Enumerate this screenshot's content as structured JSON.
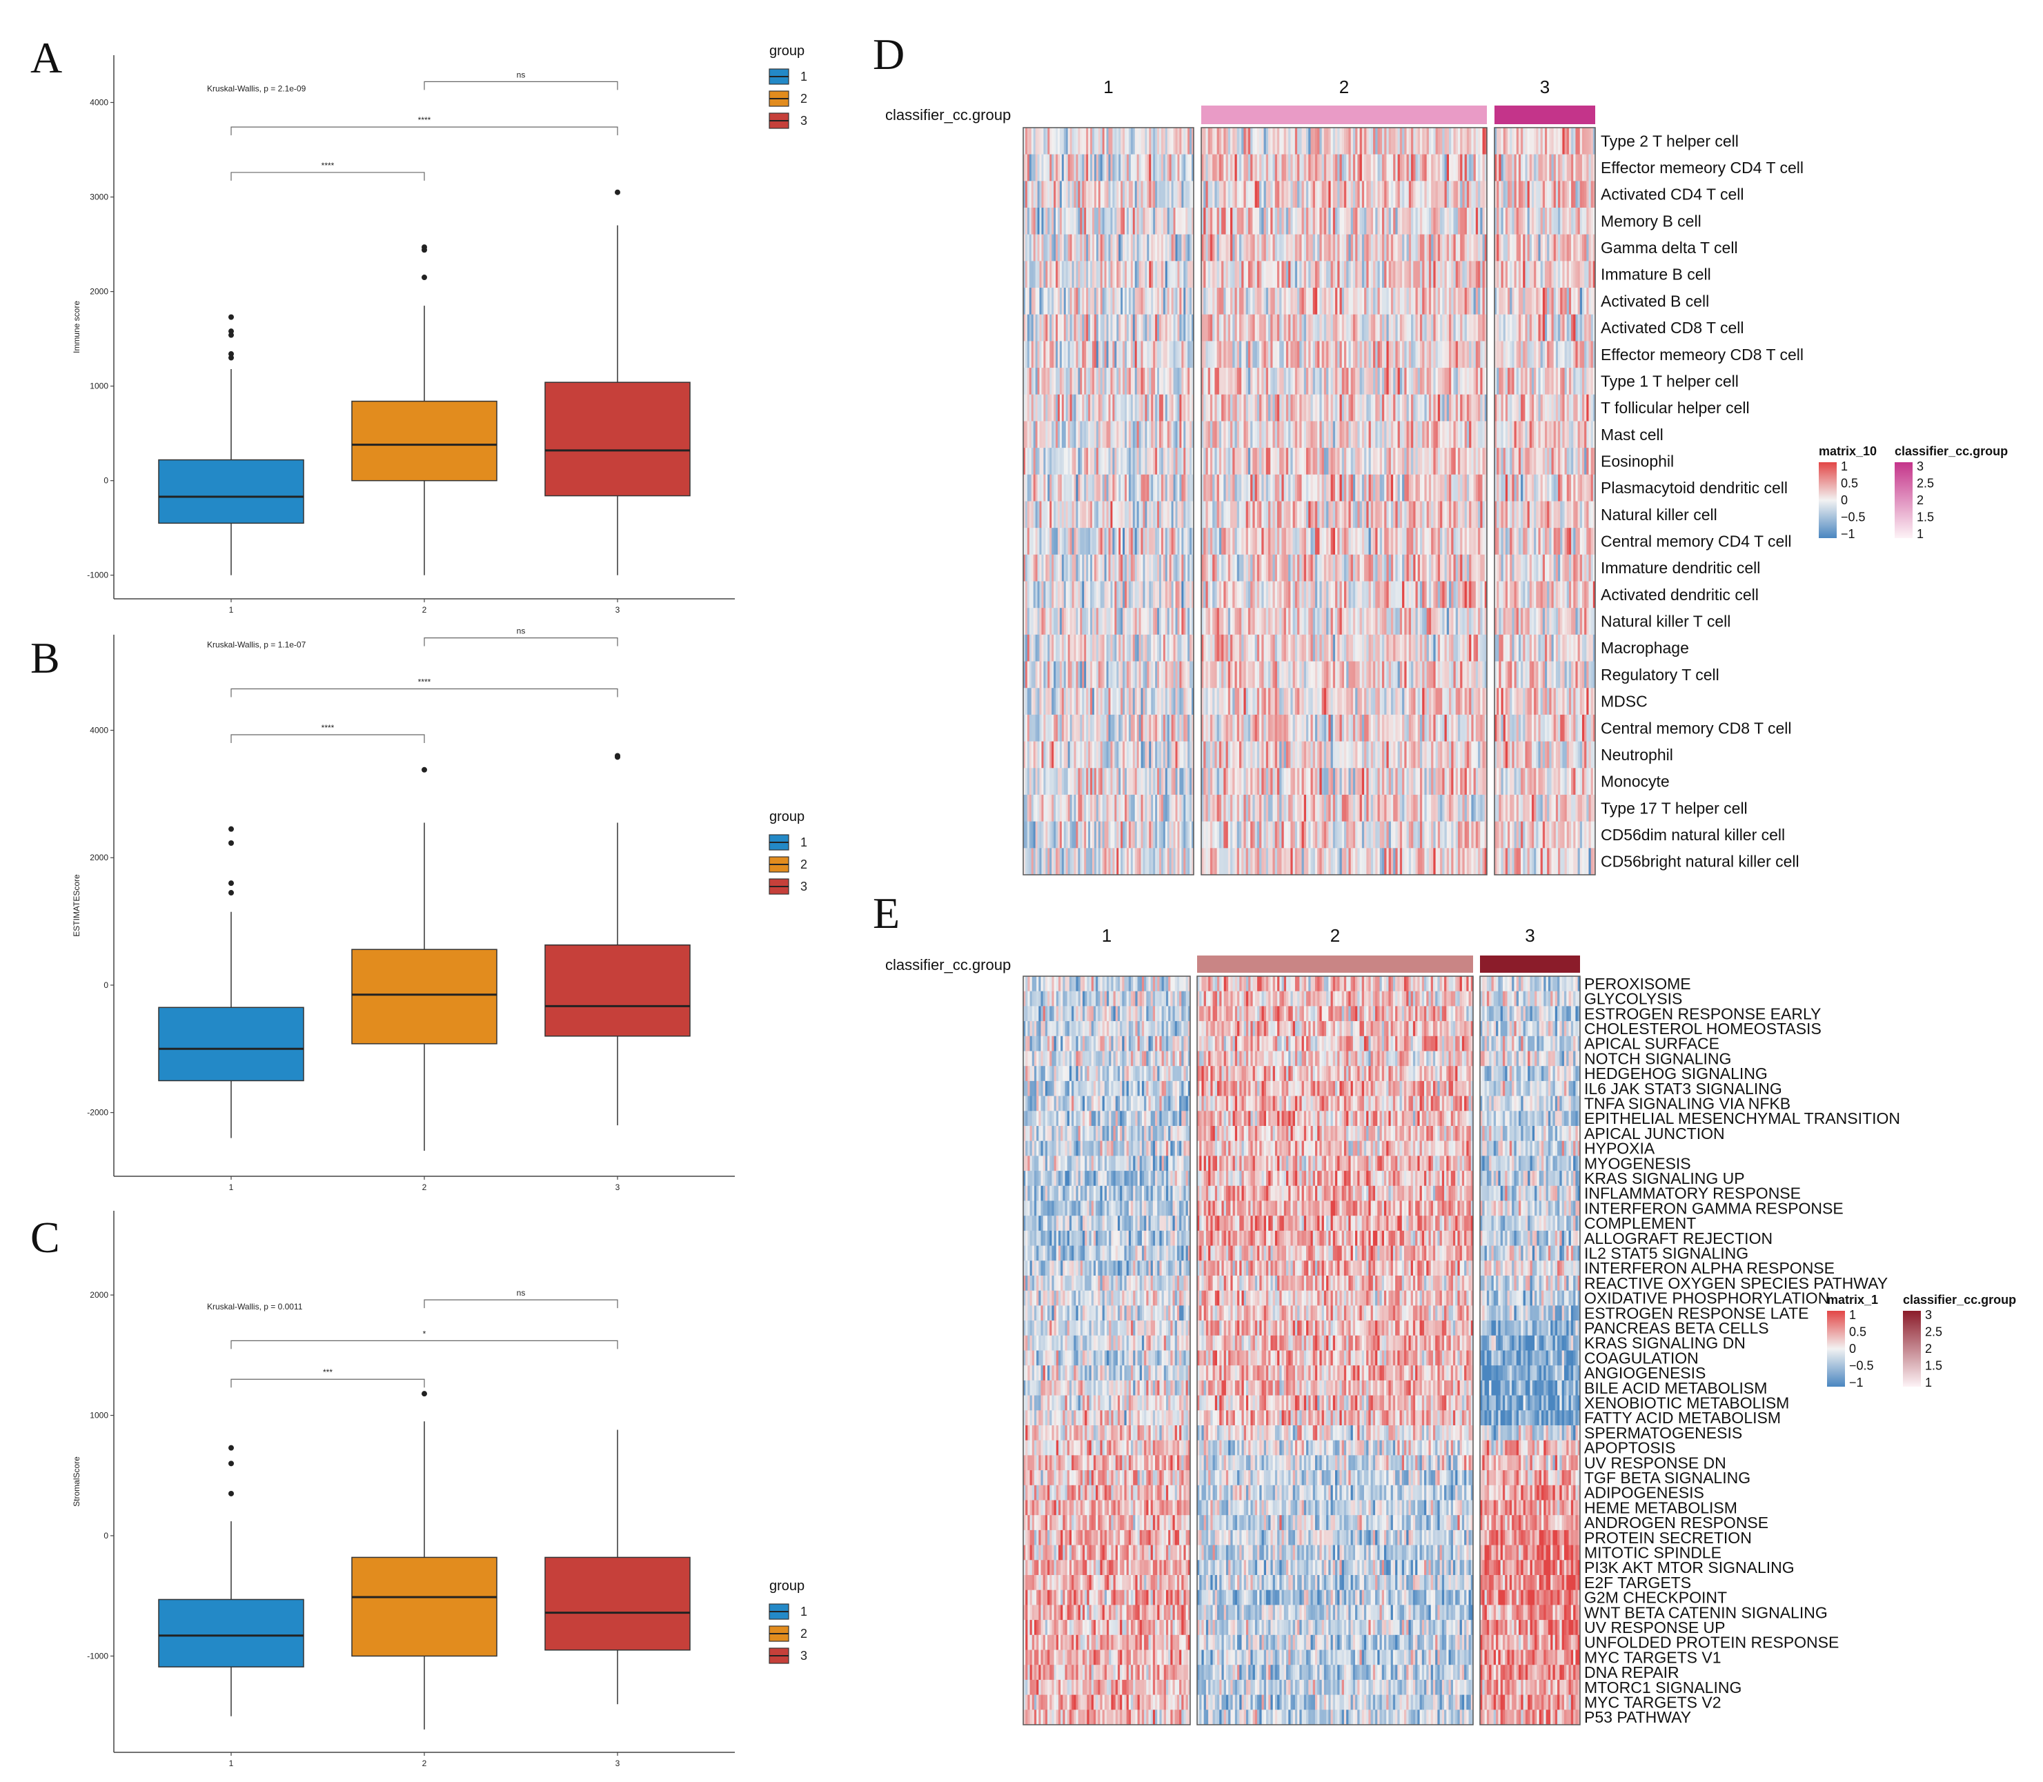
{
  "panels": {
    "A": "A",
    "B": "B",
    "C": "C",
    "D": "D",
    "E": "E"
  },
  "colors": {
    "group1": "#2389c7",
    "group2": "#e28c1e",
    "group3": "#c6403a",
    "heat_low": "#4a86c0",
    "heat_mid": "#f2f2f2",
    "heat_high": "#e24646",
    "ann_d2": "#e99bc6",
    "ann_d3": "#c4348a",
    "ann_e2": "#c98585",
    "ann_e3": "#8b1c2a"
  },
  "chart_data": [
    {
      "id": "A",
      "type": "box",
      "ylabel": "Immune score",
      "categories": [
        "1",
        "2",
        "3"
      ],
      "yticks": [
        -1000,
        0,
        1000,
        2000,
        3000,
        4000
      ],
      "ytick_labels": [
        "-1000",
        "0",
        "1000",
        "2000",
        "3000",
        "4000"
      ],
      "ylim": [
        -1250,
        4500
      ],
      "kruskal": "Kruskal-Wallis, p = 2.1e-09",
      "boxes": [
        {
          "group": "1",
          "min": -1000,
          "q1": -450,
          "median": -170,
          "q3": 220,
          "max": 1180,
          "outliers": [
            1300,
            1340,
            1540,
            1580,
            1730
          ]
        },
        {
          "group": "2",
          "min": -1000,
          "q1": 0,
          "median": 380,
          "q3": 840,
          "max": 1850,
          "outliers": [
            2150,
            2440,
            2470
          ]
        },
        {
          "group": "3",
          "min": -1000,
          "q1": -160,
          "median": 320,
          "q3": 1040,
          "max": 2700,
          "outliers": [
            3050
          ]
        }
      ],
      "comparisons": [
        {
          "from": "2",
          "to": "3",
          "label": "ns",
          "y": 4220
        },
        {
          "from": "1",
          "to": "3",
          "label": "****",
          "y": 3740
        },
        {
          "from": "1",
          "to": "2",
          "label": "****",
          "y": 3260
        }
      ],
      "legend": {
        "title": "group",
        "items": [
          "1",
          "2",
          "3"
        ]
      }
    },
    {
      "id": "B",
      "type": "box",
      "ylabel": "ESTIMATEScore",
      "categories": [
        "1",
        "2",
        "3"
      ],
      "yticks": [
        -2000,
        0,
        2000,
        4000
      ],
      "ytick_labels": [
        "-2000",
        "0",
        "2000",
        "4000"
      ],
      "ylim": [
        -3000,
        5500
      ],
      "kruskal": "Kruskal-Wallis, p = 1.1e-07",
      "boxes": [
        {
          "group": "1",
          "min": -2400,
          "q1": -1500,
          "median": -1000,
          "q3": -350,
          "max": 1150,
          "outliers": [
            1450,
            1600,
            2230,
            2450
          ]
        },
        {
          "group": "2",
          "min": -2600,
          "q1": -920,
          "median": -150,
          "q3": 560,
          "max": 2550,
          "outliers": [
            3380
          ]
        },
        {
          "group": "3",
          "min": -2200,
          "q1": -800,
          "median": -330,
          "q3": 630,
          "max": 2550,
          "outliers": [
            3600,
            3580
          ]
        }
      ],
      "comparisons": [
        {
          "from": "2",
          "to": "3",
          "label": "ns",
          "y": 5450
        },
        {
          "from": "1",
          "to": "3",
          "label": "****",
          "y": 4650
        },
        {
          "from": "1",
          "to": "2",
          "label": "****",
          "y": 3930
        }
      ],
      "legend": {
        "title": "group",
        "items": [
          "1",
          "2",
          "3"
        ]
      }
    },
    {
      "id": "C",
      "type": "box",
      "ylabel": "StromalScore",
      "categories": [
        "1",
        "2",
        "3"
      ],
      "yticks": [
        -1000,
        0,
        1000,
        2000
      ],
      "ytick_labels": [
        "-1000",
        "0",
        "1000",
        "2000"
      ],
      "ylim": [
        -1800,
        2700
      ],
      "kruskal": "Kruskal-Wallis, p = 0.0011",
      "boxes": [
        {
          "group": "1",
          "min": -1500,
          "q1": -1090,
          "median": -830,
          "q3": -530,
          "max": 120,
          "outliers": [
            350,
            600,
            730
          ]
        },
        {
          "group": "2",
          "min": -1610,
          "q1": -1000,
          "median": -510,
          "q3": -180,
          "max": 950,
          "outliers": [
            1180
          ]
        },
        {
          "group": "3",
          "min": -1400,
          "q1": -950,
          "median": -640,
          "q3": -180,
          "max": 880,
          "outliers": []
        }
      ],
      "comparisons": [
        {
          "from": "2",
          "to": "3",
          "label": "ns",
          "y": 1960
        },
        {
          "from": "1",
          "to": "3",
          "label": "*",
          "y": 1620
        },
        {
          "from": "1",
          "to": "2",
          "label": "***",
          "y": 1300
        }
      ],
      "legend": {
        "title": "group",
        "items": [
          "1",
          "2",
          "3"
        ]
      }
    },
    {
      "id": "D",
      "type": "heatmap",
      "annotation_label": "classifier_cc.group",
      "column_groups": [
        "1",
        "2",
        "3"
      ],
      "column_counts": [
        84,
        128,
        46
      ],
      "group_pattern": [
        [
          -0.15,
          -0.05,
          0.1,
          0.05,
          -0.1
        ],
        [
          0.1,
          0.2,
          0.15,
          0.05,
          0.2
        ],
        [
          0.0,
          0.1,
          0.25,
          0.2,
          0.1
        ]
      ],
      "rows": [
        "Type 2 T helper cell",
        "Effector memeory CD4 T cell",
        "Activated CD4 T cell",
        "Memory B cell",
        "Gamma delta T cell",
        "Immature  B cell",
        "Activated B cell",
        "Activated CD8 T cell",
        "Effector memeory CD8 T cell",
        "Type 1 T helper cell",
        "T follicular helper cell",
        "Mast cell",
        "Eosinophil",
        "Plasmacytoid dendritic cell",
        "Natural killer cell",
        "Central memory CD4 T cell",
        "Immature dendritic cell",
        "Activated dendritic cell",
        "Natural killer T cell",
        "Macrophage",
        "Regulatory T cell",
        "MDSC",
        "Central memory CD8 T cell",
        "Neutrophil",
        "Monocyte",
        "Type 17 T helper cell",
        "CD56dim natural killer cell",
        "CD56bright natural killer cell"
      ],
      "value_legend": {
        "title": "matrix_10",
        "ticks": [
          "1",
          "0.5",
          "0",
          "−0.5",
          "−1"
        ]
      },
      "group_legend": {
        "title": "classifier_cc.group",
        "ticks": [
          "3",
          "2.5",
          "2",
          "1.5",
          "1"
        ]
      }
    },
    {
      "id": "E",
      "type": "heatmap",
      "annotation_label": "classifier_cc.group",
      "column_groups": [
        "1",
        "2",
        "3"
      ],
      "column_counts": [
        76,
        124,
        44
      ],
      "rows": [
        "PEROXISOME",
        "GLYCOLYSIS",
        "ESTROGEN RESPONSE EARLY",
        "CHOLESTEROL HOMEOSTASIS",
        "APICAL SURFACE",
        "NOTCH SIGNALING",
        "HEDGEHOG SIGNALING",
        "IL6 JAK STAT3 SIGNALING",
        "TNFA SIGNALING VIA NFKB",
        "EPITHELIAL MESENCHYMAL TRANSITION",
        "APICAL JUNCTION",
        "HYPOXIA",
        "MYOGENESIS",
        "KRAS SIGNALING UP",
        "INFLAMMATORY RESPONSE",
        "INTERFERON GAMMA RESPONSE",
        "COMPLEMENT",
        "ALLOGRAFT REJECTION",
        "IL2 STAT5 SIGNALING",
        "INTERFERON ALPHA RESPONSE",
        "REACTIVE OXYGEN SPECIES PATHWAY",
        "OXIDATIVE PHOSPHORYLATION",
        "ESTROGEN RESPONSE LATE",
        "PANCREAS BETA CELLS",
        "KRAS SIGNALING DN",
        "COAGULATION",
        "ANGIOGENESIS",
        "BILE ACID METABOLISM",
        "XENOBIOTIC METABOLISM",
        "FATTY ACID METABOLISM",
        "SPERMATOGENESIS",
        "APOPTOSIS",
        "UV RESPONSE DN",
        "TGF BETA SIGNALING",
        "ADIPOGENESIS",
        "HEME METABOLISM",
        "ANDROGEN RESPONSE",
        "PROTEIN SECRETION",
        "MITOTIC SPINDLE",
        "PI3K AKT MTOR SIGNALING",
        "E2F TARGETS",
        "G2M CHECKPOINT",
        "WNT BETA CATENIN SIGNALING",
        "UV RESPONSE UP",
        "UNFOLDED PROTEIN RESPONSE",
        "MYC TARGETS V1",
        "DNA REPAIR",
        "MTORC1 SIGNALING",
        "MYC TARGETS V2",
        "P53 PATHWAY"
      ],
      "group_means": [
        [
          -0.15,
          0.25,
          -0.2
        ],
        [
          -0.2,
          0.2,
          0.0
        ],
        [
          -0.2,
          0.3,
          -0.3
        ],
        [
          -0.2,
          0.25,
          -0.2
        ],
        [
          -0.15,
          0.25,
          -0.2
        ],
        [
          -0.1,
          0.2,
          -0.1
        ],
        [
          -0.25,
          0.3,
          -0.2
        ],
        [
          -0.3,
          0.35,
          -0.2
        ],
        [
          -0.25,
          0.3,
          -0.2
        ],
        [
          -0.3,
          0.35,
          -0.3
        ],
        [
          -0.2,
          0.3,
          -0.2
        ],
        [
          -0.2,
          0.25,
          -0.1
        ],
        [
          -0.25,
          0.3,
          -0.3
        ],
        [
          -0.35,
          0.4,
          -0.3
        ],
        [
          -0.35,
          0.35,
          -0.2
        ],
        [
          -0.35,
          0.35,
          -0.1
        ],
        [
          -0.3,
          0.4,
          -0.3
        ],
        [
          -0.35,
          0.4,
          -0.2
        ],
        [
          -0.3,
          0.35,
          -0.2
        ],
        [
          -0.3,
          0.3,
          0.0
        ],
        [
          -0.1,
          0.25,
          -0.2
        ],
        [
          0.0,
          0.2,
          -0.3
        ],
        [
          -0.15,
          0.3,
          -0.4
        ],
        [
          -0.1,
          0.3,
          -0.6
        ],
        [
          -0.1,
          0.35,
          -0.7
        ],
        [
          -0.1,
          0.35,
          -0.7
        ],
        [
          -0.1,
          0.35,
          -0.7
        ],
        [
          0.0,
          0.3,
          -0.75
        ],
        [
          0.0,
          0.3,
          -0.75
        ],
        [
          0.0,
          0.25,
          -0.7
        ],
        [
          0.1,
          0.0,
          -0.2
        ],
        [
          0.2,
          -0.1,
          0.2
        ],
        [
          0.3,
          -0.15,
          0.3
        ],
        [
          0.3,
          -0.2,
          0.4
        ],
        [
          0.3,
          -0.25,
          0.5
        ],
        [
          0.35,
          -0.25,
          0.5
        ],
        [
          0.3,
          -0.2,
          0.5
        ],
        [
          0.35,
          -0.2,
          0.6
        ],
        [
          0.35,
          -0.25,
          0.65
        ],
        [
          0.35,
          -0.25,
          0.65
        ],
        [
          0.4,
          -0.3,
          0.7
        ],
        [
          0.4,
          -0.3,
          0.7
        ],
        [
          0.35,
          -0.25,
          0.5
        ],
        [
          0.35,
          -0.25,
          0.55
        ],
        [
          0.35,
          -0.3,
          0.55
        ],
        [
          0.4,
          -0.3,
          0.6
        ],
        [
          0.35,
          -0.3,
          0.6
        ],
        [
          0.3,
          -0.25,
          0.5
        ],
        [
          0.35,
          -0.3,
          0.5
        ],
        [
          0.3,
          -0.25,
          0.45
        ]
      ],
      "value_legend": {
        "title": "matrix_1",
        "ticks": [
          "1",
          "0.5",
          "0",
          "−0.5",
          "−1"
        ]
      },
      "group_legend": {
        "title": "classifier_cc.group",
        "ticks": [
          "3",
          "2.5",
          "2",
          "1.5",
          "1"
        ]
      }
    }
  ]
}
